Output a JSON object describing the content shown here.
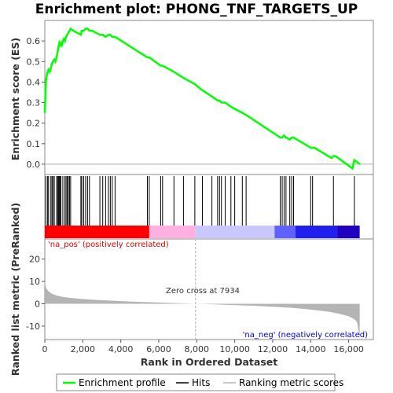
{
  "chart_data": {
    "type": "line",
    "title": "Enrichment plot: PHONG_TNF_TARGETS_UP",
    "top_panel": {
      "ylabel": "Enrichment score (ES)",
      "ylim": [
        -0.05,
        0.7
      ],
      "yticks": [
        "0.0",
        "0.1",
        "0.2",
        "0.3",
        "0.4",
        "0.5",
        "0.6"
      ],
      "series": [
        {
          "name": "Enrichment profile",
          "color": "#00ff00",
          "x": [
            0,
            30,
            60,
            100,
            150,
            200,
            260,
            320,
            380,
            430,
            500,
            560,
            620,
            680,
            720,
            760,
            800,
            850,
            900,
            950,
            1000,
            1060,
            1120,
            1180,
            1240,
            1300,
            1360,
            1500,
            1700,
            1900,
            1950,
            2050,
            2150,
            2250,
            2350,
            2500,
            2700,
            2900,
            3050,
            3200,
            3350,
            3450,
            3550,
            3700,
            5400,
            5500,
            6100,
            6200,
            6800,
            7300,
            7900,
            8300,
            8800,
            9100,
            9200,
            9300,
            9500,
            9800,
            10000,
            10400,
            10600,
            12400,
            12500,
            12600,
            12700,
            12900,
            13000,
            13100,
            14000,
            14100,
            14200,
            15100,
            15200,
            15300,
            16200,
            16300,
            16600
          ],
          "y": [
            0.25,
            0.33,
            0.4,
            0.43,
            0.45,
            0.46,
            0.45,
            0.47,
            0.49,
            0.5,
            0.51,
            0.5,
            0.52,
            0.55,
            0.57,
            0.59,
            0.58,
            0.59,
            0.58,
            0.6,
            0.61,
            0.6,
            0.62,
            0.63,
            0.64,
            0.65,
            0.66,
            0.65,
            0.64,
            0.63,
            0.65,
            0.65,
            0.66,
            0.66,
            0.65,
            0.65,
            0.64,
            0.63,
            0.63,
            0.62,
            0.63,
            0.63,
            0.62,
            0.62,
            0.52,
            0.52,
            0.48,
            0.48,
            0.45,
            0.42,
            0.39,
            0.36,
            0.33,
            0.31,
            0.31,
            0.3,
            0.3,
            0.28,
            0.27,
            0.25,
            0.24,
            0.13,
            0.13,
            0.14,
            0.13,
            0.12,
            0.13,
            0.13,
            0.08,
            0.08,
            0.08,
            0.03,
            0.04,
            0.04,
            -0.02,
            0.02,
            0.0
          ]
        }
      ]
    },
    "hits_panel": {
      "name": "Hits",
      "positions": [
        60,
        150,
        200,
        320,
        380,
        430,
        500,
        620,
        680,
        720,
        760,
        800,
        850,
        950,
        1060,
        1120,
        1180,
        1240,
        1300,
        1360,
        1900,
        1950,
        2050,
        2150,
        2250,
        2350,
        2900,
        3050,
        3200,
        3350,
        3450,
        3550,
        3700,
        5400,
        5500,
        6100,
        6200,
        6800,
        7300,
        7900,
        8300,
        8800,
        9100,
        9200,
        9300,
        9500,
        9800,
        10000,
        10400,
        10600,
        12400,
        12500,
        12600,
        12700,
        12900,
        13000,
        13100,
        14000,
        14100,
        15200,
        16300
      ]
    },
    "rank_bar": {
      "segments": [
        {
          "start": 0,
          "end": 5500,
          "color": "#ff0000"
        },
        {
          "start": 5500,
          "end": 7934,
          "color": "#ffb0e0"
        },
        {
          "start": 7934,
          "end": 12100,
          "color": "#c8c8ff"
        },
        {
          "start": 12100,
          "end": 13200,
          "color": "#6060ff"
        },
        {
          "start": 13200,
          "end": 15400,
          "color": "#2020ee"
        },
        {
          "start": 15400,
          "end": 16580,
          "color": "#2000c0"
        }
      ]
    },
    "bottom_panel": {
      "ylabel": "Ranked list metric (PreRanked)",
      "xlabel": "Rank in Ordered Dataset",
      "ylim": [
        -16,
        29
      ],
      "yticks": [
        "20",
        "10",
        "0",
        "-10"
      ],
      "xlim": [
        0,
        17300
      ],
      "xticks": [
        "0",
        "2,000",
        "4,000",
        "6,000",
        "8,000",
        "10,000",
        "12,000",
        "14,000",
        "16,000"
      ],
      "series": [
        {
          "name": "Ranking metric scores",
          "color": "#b4b4b4",
          "x": [
            0,
            20,
            60,
            100,
            200,
            400,
            700,
            1000,
            1500,
            2000,
            3000,
            4000,
            5000,
            6000,
            7000,
            7934,
            9000,
            10000,
            11000,
            12000,
            13000,
            14000,
            15000,
            15500,
            16000,
            16200,
            16350,
            16450,
            16500,
            16580
          ],
          "y": [
            10.5,
            8.8,
            7.5,
            6.6,
            5.5,
            4.4,
            3.5,
            3.0,
            2.5,
            2.1,
            1.6,
            1.2,
            0.85,
            0.55,
            0.25,
            0.0,
            -0.3,
            -0.6,
            -0.9,
            -1.3,
            -1.8,
            -2.6,
            -3.6,
            -4.5,
            -5.6,
            -6.4,
            -7.2,
            -8.5,
            -11.0,
            -15.8
          ]
        }
      ],
      "annotations": {
        "na_pos": "'na_pos' (positively correlated)",
        "na_neg": "'na_neg' (negatively correlated)",
        "zero_cross": "Zero cross at 7934"
      }
    },
    "legend": {
      "items": [
        {
          "label": "Enrichment profile",
          "color": "#00ff00"
        },
        {
          "label": "Hits",
          "color": "#000000"
        },
        {
          "label": "Ranking metric scores",
          "color": "#b4b4b4"
        }
      ]
    },
    "colors": {
      "na_pos_text": "#dd0000",
      "na_neg_text": "#0000cc",
      "zero_line": "#b4b4b4"
    }
  }
}
